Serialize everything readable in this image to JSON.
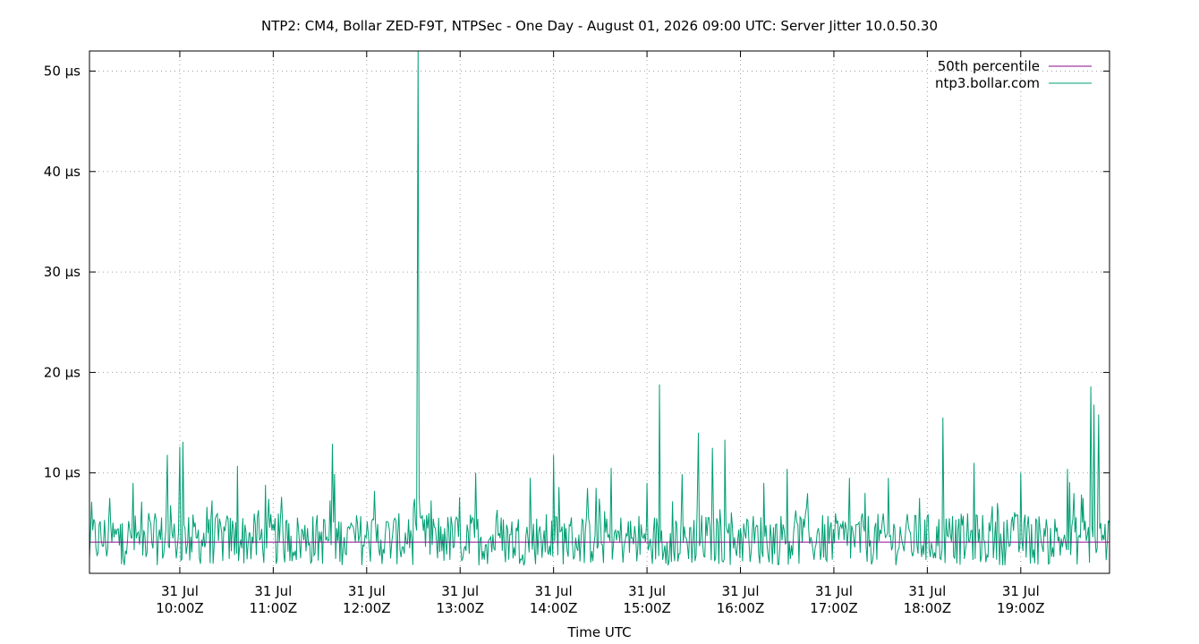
{
  "chart_data": {
    "type": "line",
    "title": "NTP2: CM4, Bollar ZED-F9T, NTPSec - One Day - August 01, 2026 09:00 UTC: Server Jitter 10.0.50.30",
    "xlabel": "Time UTC",
    "ylabel": "",
    "x_range": [
      "2026-07-31T09:02Z",
      "2026-07-31T19:57Z"
    ],
    "ylim": [
      0,
      52
    ],
    "y_unit": "µs",
    "grid": true,
    "legend_position": "top-right",
    "y_ticks": [
      {
        "value": 10,
        "label": "10 µs"
      },
      {
        "value": 20,
        "label": "20 µs"
      },
      {
        "value": 30,
        "label": "30 µs"
      },
      {
        "value": 40,
        "label": "40 µs"
      },
      {
        "value": 50,
        "label": "50 µs"
      }
    ],
    "x_ticks": [
      {
        "value": "2026-07-31T10:00Z",
        "date": "31 Jul",
        "time": "10:00Z"
      },
      {
        "value": "2026-07-31T11:00Z",
        "date": "31 Jul",
        "time": "11:00Z"
      },
      {
        "value": "2026-07-31T12:00Z",
        "date": "31 Jul",
        "time": "12:00Z"
      },
      {
        "value": "2026-07-31T13:00Z",
        "date": "31 Jul",
        "time": "13:00Z"
      },
      {
        "value": "2026-07-31T14:00Z",
        "date": "31 Jul",
        "time": "14:00Z"
      },
      {
        "value": "2026-07-31T15:00Z",
        "date": "31 Jul",
        "time": "15:00Z"
      },
      {
        "value": "2026-07-31T16:00Z",
        "date": "31 Jul",
        "time": "16:00Z"
      },
      {
        "value": "2026-07-31T17:00Z",
        "date": "31 Jul",
        "time": "17:00Z"
      },
      {
        "value": "2026-07-31T18:00Z",
        "date": "31 Jul",
        "time": "18:00Z"
      },
      {
        "value": "2026-07-31T19:00Z",
        "date": "31 Jul",
        "time": "19:00Z"
      }
    ],
    "series": [
      {
        "name": "50th percentile",
        "color": "#8b0a8b",
        "x": [
          "2026-07-31T09:02Z",
          "2026-07-31T19:57Z"
        ],
        "y": [
          3.1,
          3.1
        ]
      },
      {
        "name": "ntp3.bollar.com",
        "color": "#009e73",
        "x": [
          "2026-07-31T09:02Z",
          "2026-07-31T09:15Z",
          "2026-07-31T09:23Z",
          "2026-07-31T09:30Z",
          "2026-07-31T09:40Z",
          "2026-07-31T09:52Z",
          "2026-07-31T09:55Z",
          "2026-07-31T10:00Z",
          "2026-07-31T10:02Z",
          "2026-07-31T10:05Z",
          "2026-07-31T10:20Z",
          "2026-07-31T10:37Z",
          "2026-07-31T10:45Z",
          "2026-07-31T10:55Z",
          "2026-07-31T11:10Z",
          "2026-07-31T11:22Z",
          "2026-07-31T11:38Z",
          "2026-07-31T11:50Z",
          "2026-07-31T12:05Z",
          "2026-07-31T12:20Z",
          "2026-07-31T12:30Z",
          "2026-07-31T12:33Z",
          "2026-07-31T12:35Z",
          "2026-07-31T12:40Z",
          "2026-07-31T12:50Z",
          "2026-07-31T13:10Z",
          "2026-07-31T13:25Z",
          "2026-07-31T13:45Z",
          "2026-07-31T14:00Z",
          "2026-07-31T14:08Z",
          "2026-07-31T14:30Z",
          "2026-07-31T14:37Z",
          "2026-07-31T14:50Z",
          "2026-07-31T15:00Z",
          "2026-07-31T15:08Z",
          "2026-07-31T15:15Z",
          "2026-07-31T15:33Z",
          "2026-07-31T15:42Z",
          "2026-07-31T15:50Z",
          "2026-07-31T16:00Z",
          "2026-07-31T16:15Z",
          "2026-07-31T16:30Z",
          "2026-07-31T16:50Z",
          "2026-07-31T17:10Z",
          "2026-07-31T17:20Z",
          "2026-07-31T17:35Z",
          "2026-07-31T17:43Z",
          "2026-07-31T17:55Z",
          "2026-07-31T18:10Z",
          "2026-07-31T18:30Z",
          "2026-07-31T18:45Z",
          "2026-07-31T19:00Z",
          "2026-07-31T19:15Z",
          "2026-07-31T19:30Z",
          "2026-07-31T19:40Z",
          "2026-07-31T19:45Z",
          "2026-07-31T19:47Z",
          "2026-07-31T19:50Z",
          "2026-07-31T19:57Z"
        ],
        "y": [
          1.5,
          7.5,
          5.0,
          9.0,
          6.0,
          11.8,
          4.0,
          12.6,
          13.1,
          3.0,
          5.5,
          10.7,
          4.0,
          8.8,
          5.0,
          4.5,
          12.9,
          5.0,
          8.2,
          4.0,
          6.5,
          52.0,
          5.5,
          6.0,
          4.5,
          10.0,
          4.0,
          9.5,
          11.8,
          4.5,
          6.0,
          10.5,
          3.5,
          9.0,
          18.8,
          4.0,
          14.0,
          12.5,
          13.3,
          4.5,
          9.0,
          10.4,
          4.5,
          9.5,
          8.0,
          9.5,
          4.0,
          7.5,
          15.5,
          11.0,
          7.0,
          10.0,
          4.5,
          10.4,
          7.5,
          18.6,
          16.8,
          15.8,
          5.0
        ]
      }
    ]
  }
}
